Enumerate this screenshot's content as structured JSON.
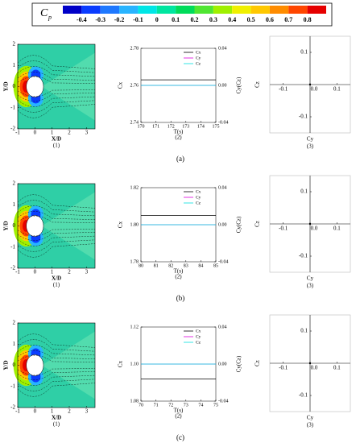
{
  "colorbar": {
    "label": "C",
    "sub": "p",
    "ticks": [
      -0.4,
      -0.3,
      -0.2,
      -0.1,
      0,
      0.1,
      0.2,
      0.3,
      0.4,
      0.5,
      0.6,
      0.7,
      0.8
    ],
    "colors": [
      "#0000c8",
      "#0a3cff",
      "#1e78ff",
      "#28b4ff",
      "#00e6e6",
      "#00e6a0",
      "#00dc5a",
      "#50e632",
      "#a0f000",
      "#f0f000",
      "#ffc800",
      "#ff8c00",
      "#ff4600",
      "#e60000"
    ]
  },
  "rows": [
    {
      "caption": "(a)",
      "contour": {
        "caption": "(1)",
        "xlabel": "X/D",
        "ylabel": "Y/D",
        "xlim": [
          -1,
          3.5
        ],
        "ylim": [
          -2,
          2
        ],
        "xticks": [
          -1,
          0,
          1,
          2,
          3
        ],
        "yticks": [
          -2,
          -1,
          0,
          1,
          2
        ]
      },
      "force": {
        "type": "line",
        "caption": "(2)",
        "xlabel": "T(s)",
        "ylabel": "Cx",
        "y2label": "Cy(Cz)",
        "xlim": [
          170,
          175
        ],
        "xticks": [
          170,
          171,
          172,
          173,
          174,
          175
        ],
        "ylim": [
          2.74,
          2.78
        ],
        "yticks": [
          2.74,
          2.76,
          2.78
        ],
        "y2lim": [
          -0.04,
          0.04
        ],
        "y2ticks": [
          -0.04,
          {
            "value": 0,
            "label": "0.00"
          },
          0.04
        ],
        "x": [
          170,
          175
        ],
        "series": [
          {
            "name": "Cx",
            "color": "#000000",
            "values": [
              2.763,
              2.763
            ]
          },
          {
            "name": "Cy",
            "color": "#e000e0",
            "axis": "y2",
            "values": [
              0,
              0
            ]
          },
          {
            "name": "Cz",
            "color": "#00e0e0",
            "axis": "y2",
            "values": [
              0,
              0
            ]
          }
        ]
      },
      "orbit": {
        "type": "scatter",
        "caption": "(3)",
        "xlabel": "Cy",
        "ylabel": "Cz",
        "xlim": [
          -0.15,
          0.15
        ],
        "ylim": [
          -0.15,
          0.15
        ],
        "xticks": [
          -0.1,
          {
            "value": 0,
            "label": "0.0"
          },
          0.1
        ],
        "yticks": [
          -0.1,
          0.1
        ],
        "x": [
          0
        ],
        "values": [
          0
        ]
      }
    },
    {
      "caption": "(b)",
      "contour": {
        "caption": "(1)",
        "xlabel": "X/D",
        "ylabel": "Y/D",
        "xlim": [
          -1,
          3.5
        ],
        "ylim": [
          -2,
          2
        ],
        "xticks": [
          -1,
          0,
          1,
          2,
          3
        ],
        "yticks": [
          -2,
          -1,
          0,
          1,
          2
        ]
      },
      "force": {
        "type": "line",
        "caption": "(2)",
        "xlabel": "T(s)",
        "ylabel": "Cx",
        "y2label": "Cy(Cz)",
        "xlim": [
          80,
          85
        ],
        "xticks": [
          80,
          81,
          82,
          83,
          84,
          85
        ],
        "ylim": [
          1.78,
          1.82
        ],
        "yticks": [
          1.78,
          {
            "value": 1.8,
            "label": "1.80"
          },
          1.82
        ],
        "y2lim": [
          -0.04,
          0.04
        ],
        "y2ticks": [
          -0.04,
          {
            "value": 0,
            "label": "0.00"
          },
          0.04
        ],
        "x": [
          80,
          85
        ],
        "series": [
          {
            "name": "Cx",
            "color": "#000000",
            "values": [
              1.805,
              1.805
            ]
          },
          {
            "name": "Cy",
            "color": "#e000e0",
            "axis": "y2",
            "values": [
              0,
              0
            ]
          },
          {
            "name": "Cz",
            "color": "#00e0e0",
            "axis": "y2",
            "values": [
              0,
              0
            ]
          }
        ]
      },
      "orbit": {
        "type": "scatter",
        "caption": "(3)",
        "xlabel": "Cy",
        "ylabel": "Cz",
        "xlim": [
          -0.15,
          0.15
        ],
        "ylim": [
          -0.15,
          0.15
        ],
        "xticks": [
          -0.1,
          {
            "value": 0,
            "label": "0.0"
          },
          0.1
        ],
        "yticks": [
          -0.1,
          0.1
        ],
        "x": [
          0
        ],
        "values": [
          0
        ]
      }
    },
    {
      "caption": "(c)",
      "contour": {
        "caption": "(1)",
        "xlabel": "X/D",
        "ylabel": "Y/D",
        "xlim": [
          -1,
          3.5
        ],
        "ylim": [
          -2,
          2
        ],
        "xticks": [
          -1,
          0,
          1,
          2,
          3
        ],
        "yticks": [
          -2,
          -1,
          0,
          1,
          2
        ]
      },
      "force": {
        "type": "line",
        "caption": "(2)",
        "xlabel": "T(s)",
        "ylabel": "Cx",
        "y2label": "Cy(Cz)",
        "xlim": [
          70,
          75
        ],
        "xticks": [
          70,
          71,
          72,
          73,
          74,
          75
        ],
        "ylim": [
          1.08,
          1.12
        ],
        "yticks": [
          1.08,
          {
            "value": 1.1,
            "label": "1.10"
          },
          1.12
        ],
        "y2lim": [
          -0.04,
          0.04
        ],
        "y2ticks": [
          -0.04,
          {
            "value": 0,
            "label": "0.00"
          },
          0.04
        ],
        "x": [
          70,
          75
        ],
        "series": [
          {
            "name": "Cx",
            "color": "#000000",
            "values": [
              1.092,
              1.092
            ]
          },
          {
            "name": "Cy",
            "color": "#e000e0",
            "axis": "y2",
            "values": [
              0,
              0
            ]
          },
          {
            "name": "Cz",
            "color": "#00e0e0",
            "axis": "y2",
            "values": [
              0,
              0
            ]
          }
        ]
      },
      "orbit": {
        "type": "scatter",
        "caption": "(3)",
        "xlabel": "Cy",
        "ylabel": "Cz",
        "xlim": [
          -0.15,
          0.15
        ],
        "ylim": [
          -0.15,
          0.15
        ],
        "xticks": [
          -0.1,
          {
            "value": 0,
            "label": "0.0"
          },
          0.1
        ],
        "yticks": [
          -0.1,
          0.1
        ],
        "x": [
          0
        ],
        "values": [
          0
        ]
      }
    }
  ]
}
